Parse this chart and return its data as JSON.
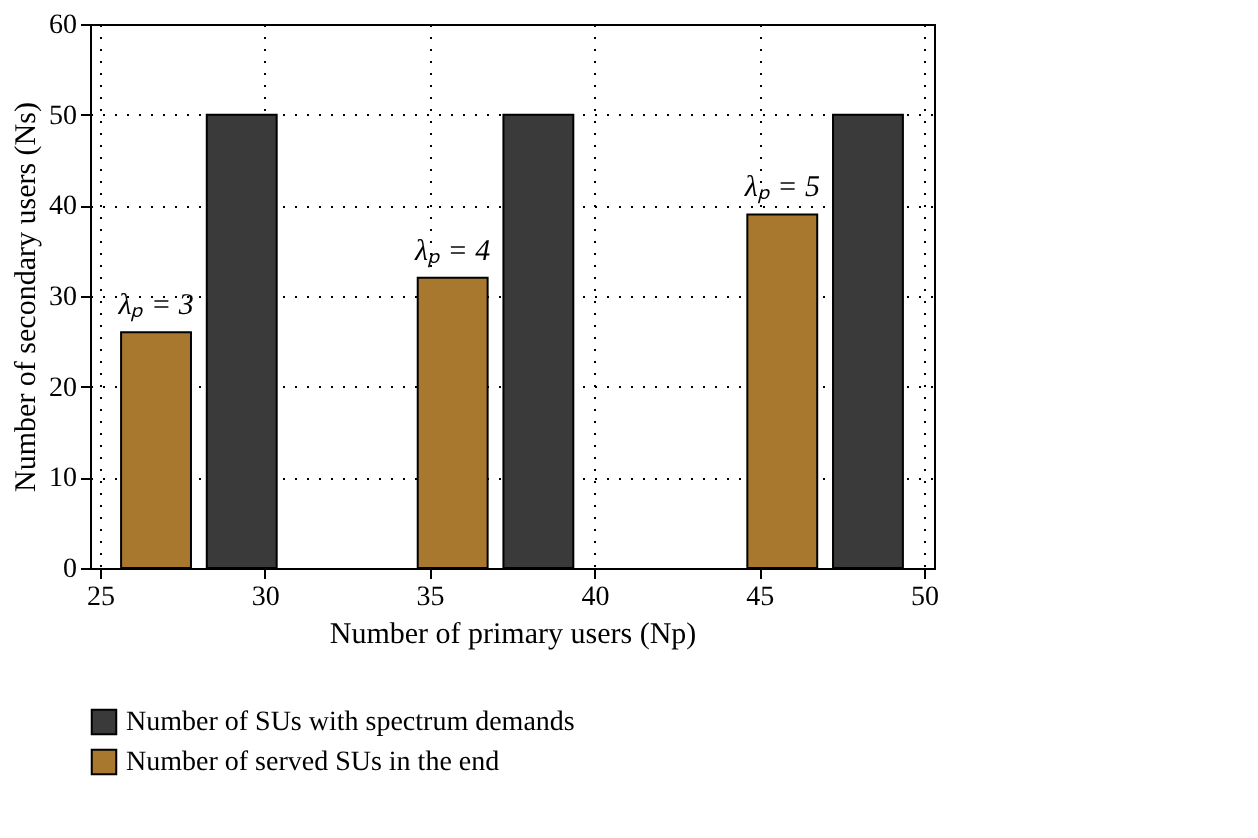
{
  "chart_data": {
    "type": "bar",
    "xlabel": "Number of primary users (Np)",
    "ylabel": "Number of secondary users (Ns)",
    "series": [
      {
        "name": "Number of SUs with spectrum demands",
        "color": "#3a3a3a",
        "x": [
          29.3,
          38.3,
          48.3
        ],
        "values": [
          50,
          50,
          50
        ]
      },
      {
        "name": "Number of served SUs in the end",
        "color": "#a8782e",
        "x": [
          26.7,
          35.7,
          45.7
        ],
        "values": [
          26,
          32,
          39
        ]
      }
    ],
    "xlim": [
      25,
      50
    ],
    "xticks": [
      25,
      30,
      35,
      40,
      45,
      50
    ],
    "ylim": [
      0,
      60
    ],
    "yticks": [
      0,
      10,
      20,
      30,
      40,
      50,
      60
    ],
    "grid": true,
    "legend": "bottom",
    "annotations": [
      {
        "text": "λₚ = 3",
        "x": 26.7,
        "y": 26
      },
      {
        "text": "λₚ = 4",
        "x": 35.7,
        "y": 32
      },
      {
        "text": "λₚ = 5",
        "x": 45.7,
        "y": 39
      }
    ]
  }
}
